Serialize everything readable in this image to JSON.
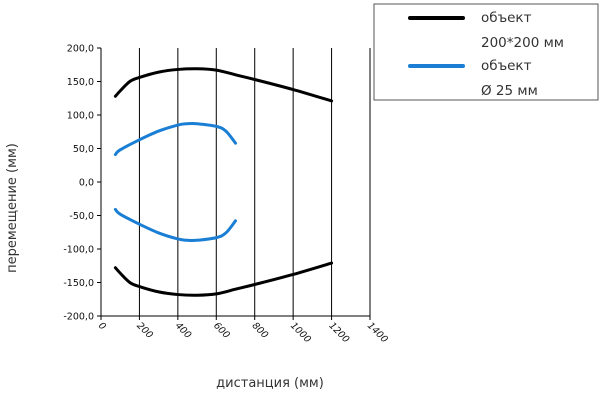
{
  "chart_data": {
    "type": "line",
    "xlabel": "дистанция (мм)",
    "ylabel": "перемещение (мм)",
    "xlim": [
      0,
      1400
    ],
    "ylim": [
      -200,
      200
    ],
    "x_ticks": [
      0,
      200,
      400,
      600,
      800,
      1000,
      1200,
      1400
    ],
    "y_ticks": [
      200,
      150,
      100,
      50,
      0,
      -50,
      -100,
      -150,
      -200
    ],
    "x_tick_labels": [
      "0",
      "200",
      "400",
      "600",
      "800",
      "1000",
      "1200",
      "1400"
    ],
    "y_tick_labels": [
      "200,0",
      "150,0",
      "100,0",
      "50,0",
      "0,0",
      "-50,0",
      "-100,0",
      "-150,0",
      "-200,0"
    ],
    "grid": "vertical",
    "legend_position": "top-right",
    "series": [
      {
        "name_lines": [
          "объект",
          "200*200 мм"
        ],
        "color": "#000000",
        "upper": [
          [
            75,
            128
          ],
          [
            100,
            136
          ],
          [
            150,
            150
          ],
          [
            200,
            156
          ],
          [
            300,
            164
          ],
          [
            400,
            168
          ],
          [
            500,
            169
          ],
          [
            600,
            167
          ],
          [
            700,
            160
          ],
          [
            800,
            153
          ],
          [
            1000,
            138
          ],
          [
            1200,
            121
          ]
        ],
        "lower": [
          [
            75,
            -128
          ],
          [
            100,
            -136
          ],
          [
            150,
            -150
          ],
          [
            200,
            -156
          ],
          [
            300,
            -164
          ],
          [
            400,
            -168
          ],
          [
            500,
            -169
          ],
          [
            600,
            -167
          ],
          [
            700,
            -160
          ],
          [
            800,
            -153
          ],
          [
            1000,
            -138
          ],
          [
            1200,
            -121
          ]
        ]
      },
      {
        "name_lines": [
          "объект",
          "Ø 25 мм"
        ],
        "color": "#1a7fd4",
        "upper": [
          [
            75,
            41
          ],
          [
            100,
            48
          ],
          [
            200,
            63
          ],
          [
            300,
            76
          ],
          [
            400,
            85
          ],
          [
            450,
            87
          ],
          [
            500,
            87
          ],
          [
            600,
            83
          ],
          [
            650,
            76
          ],
          [
            700,
            58
          ]
        ],
        "lower": [
          [
            75,
            -41
          ],
          [
            100,
            -48
          ],
          [
            200,
            -63
          ],
          [
            300,
            -76
          ],
          [
            400,
            -85
          ],
          [
            450,
            -87
          ],
          [
            500,
            -87
          ],
          [
            600,
            -83
          ],
          [
            650,
            -76
          ],
          [
            700,
            -58
          ]
        ]
      }
    ]
  }
}
